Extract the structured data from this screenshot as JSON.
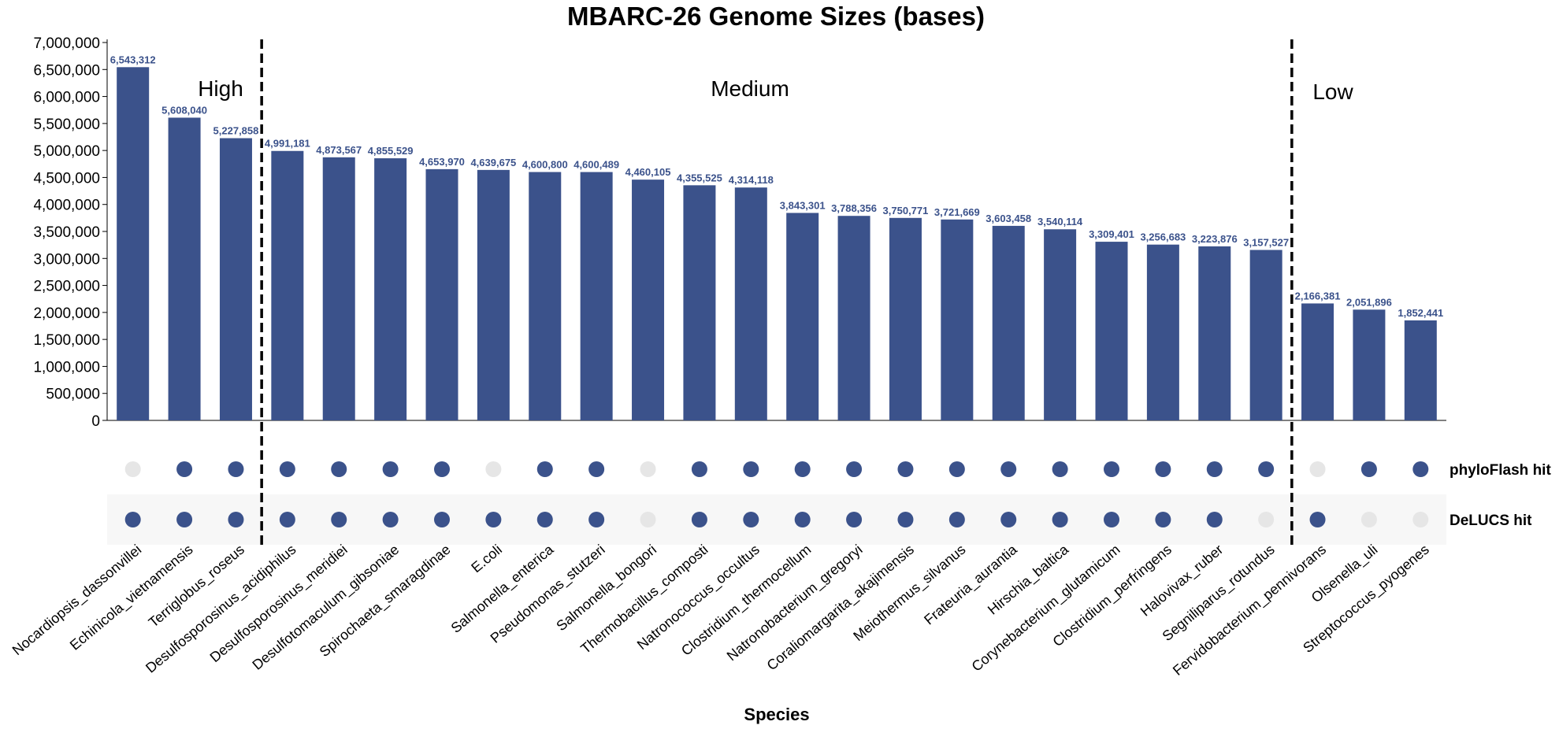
{
  "chart_data": {
    "type": "bar",
    "title": "MBARC-26 Genome Sizes (bases)",
    "xlabel": "Species",
    "ylabel": "",
    "ylim": [
      0,
      7000000
    ],
    "yticks": [
      "0",
      "500,000",
      "1,000,000",
      "1,500,000",
      "2,000,000",
      "2,500,000",
      "3,000,000",
      "3,500,000",
      "4,000,000",
      "4,500,000",
      "5,000,000",
      "5,500,000",
      "6,000,000",
      "6,500,000",
      "7,000,000"
    ],
    "categories": [
      "Nocardiopsis_dassonvillei",
      "Echinicola_vietnamensis",
      "Terriglobus_roseus",
      "Desulfosporosinus_acidiphilus",
      "Desulfosporosinus_meridiei",
      "Desulfotomaculum_gibsoniae",
      "Spirochaeta_smaragdinae",
      "E.coli",
      "Salmonella_enterica",
      "Pseudomonas_stutzeri",
      "Salmonella_bongori",
      "Thermobacillus_composti",
      "Natronococcus_occultus",
      "Clostridium_thermocellum",
      "Natronobacterium_gregoryi",
      "Coraliomargarita_akajimensis",
      "Meiothermus_silvanus",
      "Frateuria_aurantia",
      "Hirschia_baltica",
      "Corynebacterium_glutamicum",
      "Clostridium_perfringens",
      "Halovivax_ruber",
      "Segniliparus_rotundus",
      "Fervidobacterium_pennivorans",
      "Olsenella_uli",
      "Streptococcus_pyogenes"
    ],
    "values": [
      6543312,
      5608040,
      5227858,
      4991181,
      4873567,
      4855529,
      4653970,
      4639675,
      4600800,
      4600489,
      4460105,
      4355525,
      4314118,
      3843301,
      3788356,
      3750771,
      3721669,
      3603458,
      3540114,
      3309401,
      3256683,
      3223876,
      3157527,
      2166381,
      2051896,
      1852441
    ],
    "value_labels": [
      "6,543,312",
      "5,608,040",
      "5,227,858",
      "4,991,181",
      "4,873,567",
      "4,855,529",
      "4,653,970",
      "4,639,675",
      "4,600,800",
      "4,600,489",
      "4,460,105",
      "4,355,525",
      "4,314,118",
      "3,843,301",
      "3,788,356",
      "3,750,771",
      "3,721,669",
      "3,603,458",
      "3,540,114",
      "3,309,401",
      "3,256,683",
      "3,223,876",
      "3,157,527",
      "2,166,381",
      "2,051,896",
      "1,852,441"
    ],
    "regions": [
      {
        "label": "High",
        "start": 0,
        "end": 2
      },
      {
        "label": "Medium",
        "start": 3,
        "end": 22
      },
      {
        "label": "Low",
        "start": 23,
        "end": 25
      }
    ],
    "hit_rows": [
      {
        "name": "phyloFlash hit",
        "hits": [
          false,
          true,
          true,
          true,
          true,
          true,
          true,
          false,
          true,
          true,
          false,
          true,
          true,
          true,
          true,
          true,
          true,
          true,
          true,
          true,
          true,
          true,
          true,
          false,
          true,
          true
        ]
      },
      {
        "name": "DeLUCS hit",
        "hits": [
          true,
          true,
          true,
          true,
          true,
          true,
          true,
          true,
          true,
          true,
          false,
          true,
          true,
          true,
          true,
          true,
          true,
          true,
          true,
          true,
          true,
          true,
          false,
          true,
          false,
          false
        ]
      }
    ],
    "colors": {
      "bar": "#3b528b",
      "hit": "#3b528b",
      "miss": "#e6e6e6",
      "row_band": "#f7f7f7",
      "label": "#3b528b"
    },
    "grid": false,
    "legend": "none"
  }
}
